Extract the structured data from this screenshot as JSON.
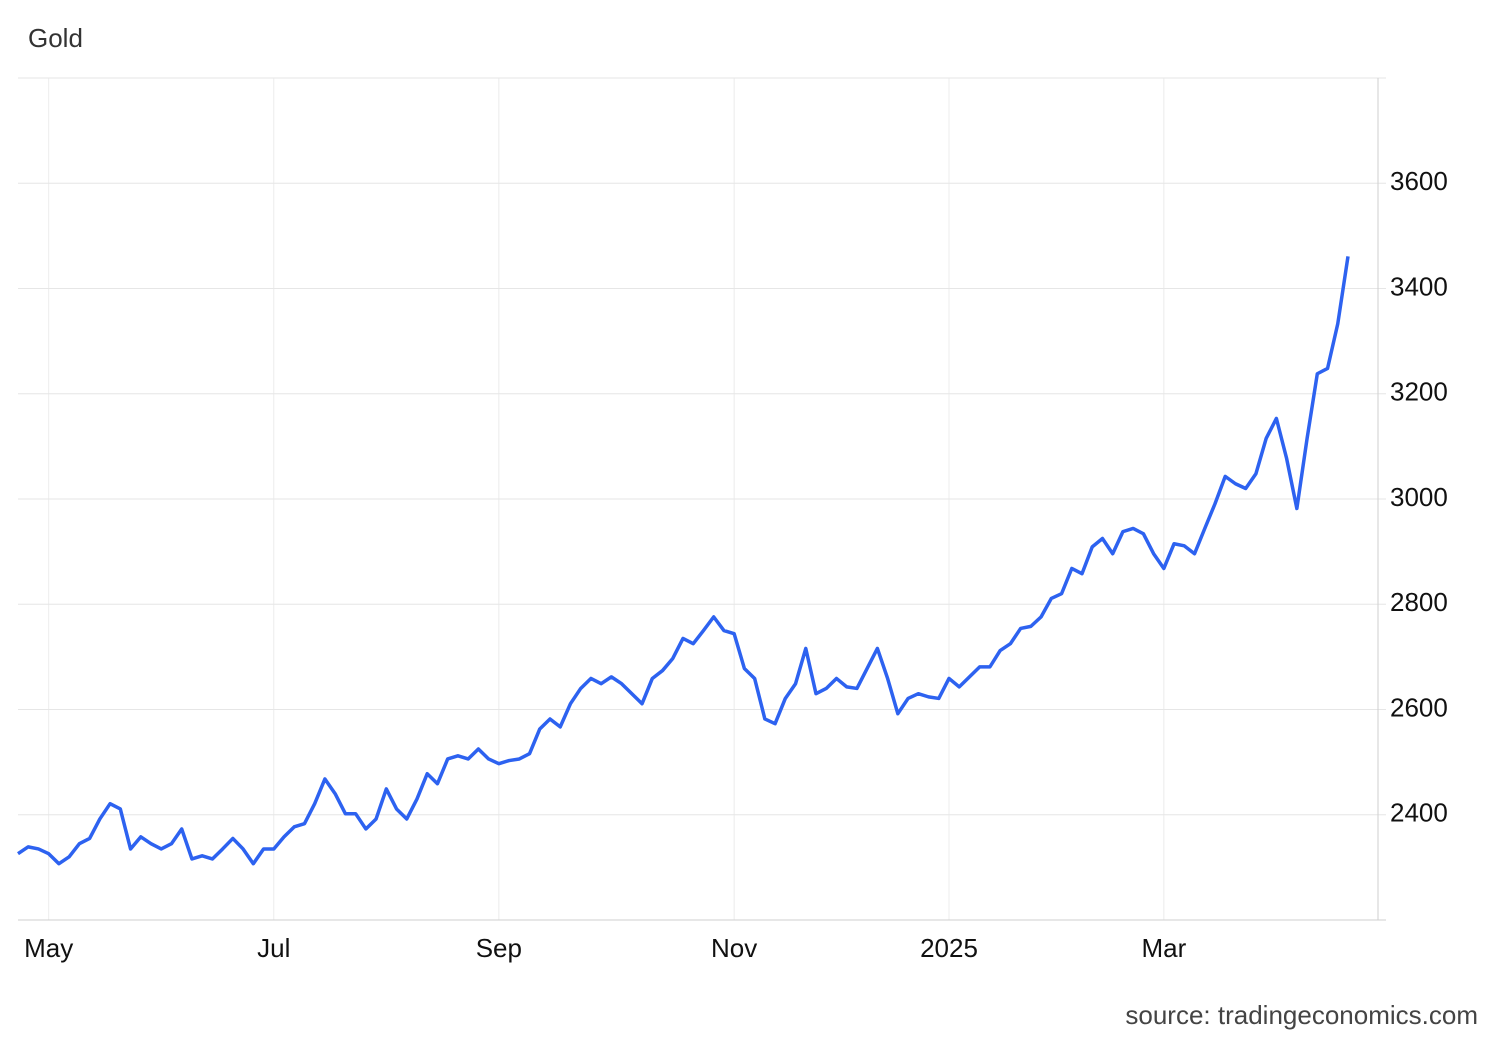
{
  "chart_data": {
    "type": "line",
    "title": "Gold",
    "source": "source: tradingeconomics.com",
    "categories": [
      null,
      null,
      null,
      "May",
      null,
      null,
      null,
      null,
      null,
      null,
      null,
      null,
      null,
      null,
      null,
      null,
      null,
      null,
      null,
      null,
      null,
      null,
      null,
      null,
      null,
      "Jul",
      null,
      null,
      null,
      null,
      null,
      null,
      null,
      null,
      null,
      null,
      null,
      null,
      null,
      null,
      null,
      null,
      null,
      null,
      null,
      null,
      null,
      "Sep",
      null,
      null,
      null,
      null,
      null,
      null,
      null,
      null,
      null,
      null,
      null,
      null,
      null,
      null,
      null,
      null,
      null,
      null,
      null,
      null,
      null,
      null,
      "Nov",
      null,
      null,
      null,
      null,
      null,
      null,
      null,
      null,
      null,
      null,
      null,
      null,
      null,
      null,
      null,
      null,
      null,
      null,
      null,
      null,
      "2025",
      null,
      null,
      null,
      null,
      null,
      null,
      null,
      null,
      null,
      null,
      null,
      null,
      null,
      null,
      null,
      null,
      null,
      null,
      null,
      null,
      "Mar",
      null,
      null,
      null,
      null,
      null,
      null,
      null,
      null,
      null,
      null,
      null,
      null,
      null,
      null,
      null,
      null,
      null,
      null
    ],
    "series": [
      {
        "name": "Gold",
        "color": "#2d62f0",
        "values": [
          2326,
          2339,
          2335,
          2326,
          2307,
          2320,
          2345,
          2355,
          2392,
          2421,
          2411,
          2335,
          2358,
          2345,
          2335,
          2345,
          2373,
          2316,
          2322,
          2316,
          2335,
          2355,
          2335,
          2307,
          2335,
          2335,
          2358,
          2377,
          2383,
          2421,
          2468,
          2440,
          2402,
          2402,
          2373,
          2392,
          2449,
          2411,
          2392,
          2430,
          2478,
          2459,
          2506,
          2512,
          2506,
          2525,
          2506,
          2497,
          2503,
          2506,
          2516,
          2563,
          2582,
          2567,
          2611,
          2640,
          2659,
          2649,
          2662,
          2649,
          2630,
          2611,
          2659,
          2674,
          2697,
          2735,
          2725,
          2750,
          2776,
          2750,
          2744,
          2678,
          2659,
          2582,
          2573,
          2621,
          2649,
          2716,
          2630,
          2640,
          2659,
          2643,
          2640,
          2678,
          2716,
          2659,
          2592,
          2621,
          2630,
          2624,
          2621,
          2659,
          2643,
          2662,
          2681,
          2681,
          2712,
          2725,
          2754,
          2758,
          2776,
          2811,
          2820,
          2868,
          2858,
          2909,
          2925,
          2896,
          2938,
          2944,
          2934,
          2896,
          2868,
          2915,
          2911,
          2896,
          2944,
          2991,
          3043,
          3029,
          3020,
          3048,
          3115,
          3153,
          3077,
          2982,
          3115,
          3238,
          3248,
          3333,
          3461
        ]
      }
    ],
    "ylim": [
      2200,
      3800
    ],
    "yticks": [
      2400,
      2600,
      2800,
      3000,
      3200,
      3400,
      3600
    ],
    "grid": true
  }
}
